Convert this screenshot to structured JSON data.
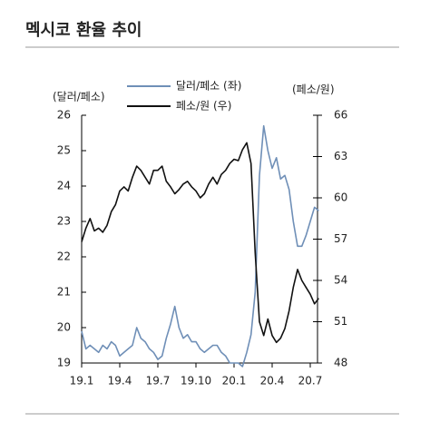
{
  "chart_data": {
    "type": "line",
    "title": "멕시코 환율 추이",
    "ylabel": "(달러/페소)",
    "y2label": "(페소/원)",
    "categories": [
      "19.1",
      null,
      null,
      null,
      null,
      null,
      null,
      null,
      null,
      "19.4",
      null,
      null,
      null,
      null,
      null,
      null,
      null,
      null,
      "19.7",
      null,
      null,
      null,
      null,
      null,
      null,
      null,
      null,
      "19.10",
      null,
      null,
      null,
      null,
      null,
      null,
      null,
      null,
      "20.1",
      null,
      null,
      null,
      null,
      null,
      null,
      null,
      null,
      "20.4",
      null,
      null,
      null,
      null,
      null,
      null,
      null,
      null,
      "20.7",
      null,
      null
    ],
    "series": [
      {
        "name": "달러/페소 (좌)",
        "color": "#6f8fb7",
        "axis": "y",
        "values": [
          19.9,
          19.4,
          19.5,
          19.4,
          19.3,
          19.5,
          19.4,
          19.6,
          19.5,
          19.2,
          19.3,
          19.4,
          19.5,
          20.0,
          19.7,
          19.6,
          19.4,
          19.3,
          19.1,
          19.2,
          19.7,
          20.1,
          20.6,
          20.0,
          19.7,
          19.8,
          19.6,
          19.6,
          19.4,
          19.3,
          19.4,
          19.5,
          19.5,
          19.3,
          19.2,
          19.0,
          19.0,
          19.0,
          18.9,
          19.3,
          19.8,
          21.0,
          24.3,
          25.7,
          25.0,
          24.5,
          24.8,
          24.2,
          24.3,
          23.9,
          23.0,
          22.3,
          22.3,
          22.6,
          23.0,
          23.4,
          23.3
        ]
      },
      {
        "name": "페소/원 (우)",
        "color": "#111111",
        "axis": "y2",
        "values": [
          56.8,
          57.8,
          58.5,
          57.6,
          57.8,
          57.5,
          58.0,
          59.0,
          59.5,
          60.5,
          60.8,
          60.5,
          61.5,
          62.3,
          62.0,
          61.5,
          61.0,
          62.0,
          62.0,
          62.3,
          61.2,
          60.8,
          60.3,
          60.6,
          61.0,
          61.2,
          60.8,
          60.5,
          60.0,
          60.3,
          61.0,
          61.5,
          61.0,
          61.7,
          62.0,
          62.5,
          62.8,
          62.7,
          63.5,
          64.0,
          62.5,
          56.0,
          51.0,
          50.0,
          51.2,
          50.0,
          49.5,
          49.8,
          50.5,
          51.8,
          53.5,
          54.8,
          54.0,
          53.5,
          53.0,
          52.3,
          52.7
        ]
      }
    ],
    "ylim": [
      19,
      26
    ],
    "yticks": [
      19,
      20,
      21,
      22,
      23,
      24,
      25,
      26
    ],
    "y2lim": [
      48,
      66
    ],
    "y2ticks": [
      48,
      51,
      54,
      57,
      60,
      63,
      66
    ]
  }
}
